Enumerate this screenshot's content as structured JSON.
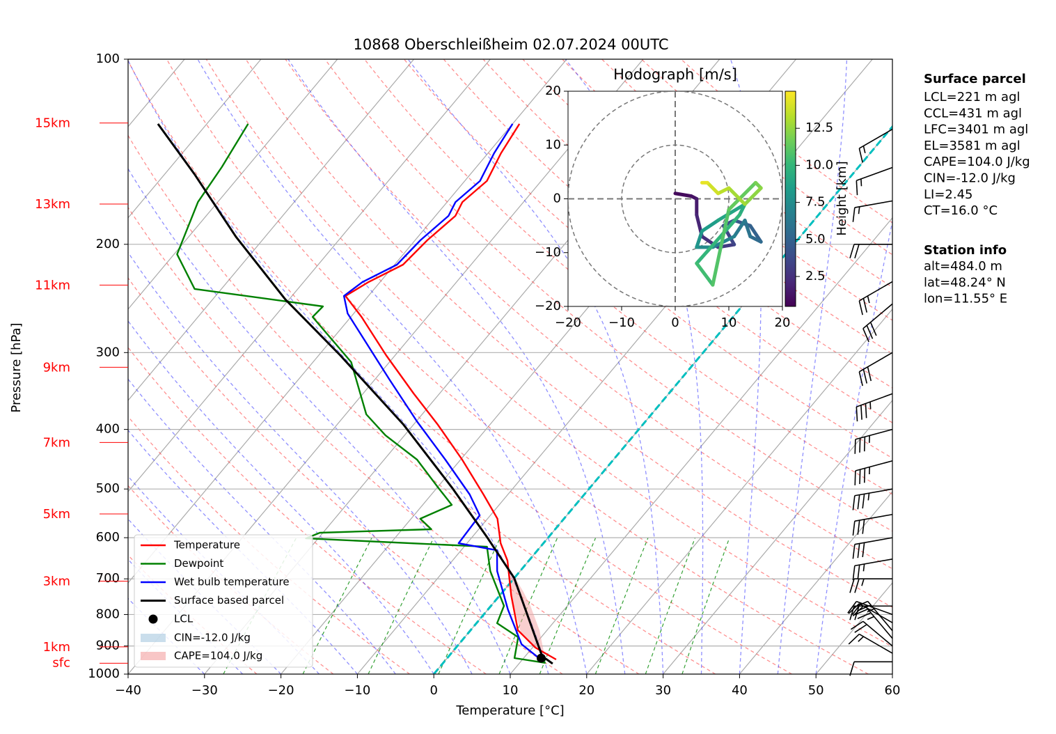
{
  "chart_data": {
    "type": "skewt",
    "title": "10868 Oberschleißheim 02.07.2024 00UTC",
    "xlabel": "Temperature [°C]",
    "ylabel": "Pressure [hPa]",
    "xlim": [
      -40,
      60
    ],
    "xticks": [
      {
        "value": -40,
        "label": "−40"
      },
      {
        "value": -30,
        "label": "−30"
      },
      {
        "value": -20,
        "label": "−20"
      },
      {
        "value": -10,
        "label": "−10"
      },
      0,
      10,
      20,
      30,
      40,
      50,
      60
    ],
    "ylim": [
      1000,
      100
    ],
    "log_y": true,
    "yticks": [
      100,
      200,
      300,
      400,
      500,
      600,
      700,
      800,
      900,
      1000
    ],
    "grid": true,
    "freezing_isotherm": 0,
    "height_labels": [
      {
        "label": "15km",
        "pressure": 127
      },
      {
        "label": "13km",
        "pressure": 172
      },
      {
        "label": "11km",
        "pressure": 233
      },
      {
        "label": "9km",
        "pressure": 317
      },
      {
        "label": "7km",
        "pressure": 420
      },
      {
        "label": "5km",
        "pressure": 549
      },
      {
        "label": "3km",
        "pressure": 706
      },
      {
        "label": "1km",
        "pressure": 903
      },
      {
        "label": "sfc",
        "pressure": 960
      }
    ],
    "series": [
      {
        "name": "Temperature",
        "color": "#ff0000",
        "pressure": [
          946.7,
          905.7,
          848.6,
          744.7,
          653.9,
          612.6,
          558.9,
          510.3,
          447.9,
          393.1,
          349.6,
          302.9,
          262.5,
          242.7,
          230.3,
          215.8,
          197.0,
          179.8,
          170.7,
          157.8,
          142.2,
          127.4
        ],
        "values": [
          14.4,
          10.4,
          6.2,
          1.5,
          -2.8,
          -5.6,
          -8.7,
          -13.2,
          -19.8,
          -26.8,
          -33.4,
          -41.2,
          -48.6,
          -53.0,
          -51.5,
          -48.9,
          -48.4,
          -47.4,
          -48.0,
          -47.1,
          -48.3,
          -49.1
        ]
      },
      {
        "name": "Dewpoint",
        "color": "#008000",
        "pressure": [
          959,
          941.7,
          871,
          826.5,
          774.5,
          680,
          620.7,
          601.6,
          589,
          581.4,
          558.9,
          530.6,
          497.1,
          447.9,
          408.9,
          378.1,
          310.9,
          262.5,
          252.4,
          236.4,
          207.6,
          170.7,
          149.8,
          127.4
        ],
        "values": [
          13.4,
          8.8,
          7.0,
          2.7,
          1.7,
          -3.9,
          -7.0,
          -31.6,
          -30.4,
          -16.2,
          -18.8,
          -16.2,
          -19.9,
          -25.7,
          -32.5,
          -37.3,
          -45.0,
          -55.0,
          -54.8,
          -73.5,
          -79.6,
          -82.6,
          -83.3,
          -84.6
        ]
      },
      {
        "name": "Wet bulb temperature",
        "color": "#0000ff",
        "pressure": [
          941.7,
          894.1,
          784.9,
          680,
          629,
          612.6,
          551.8,
          510.3,
          447.9,
          388.2,
          331.8,
          259.1,
          242.7,
          230.3,
          215.8,
          197.0,
          179.8,
          170.7,
          157.8,
          142.2,
          127.4
        ],
        "values": [
          12.0,
          8.2,
          2.6,
          -3.0,
          -5.3,
          -11.1,
          -11.4,
          -15.0,
          -22.0,
          -29.9,
          -38.1,
          -50.8,
          -53.2,
          -52.3,
          -49.7,
          -49.3,
          -48.3,
          -48.9,
          -48.0,
          -49.2,
          -50.0
        ]
      },
      {
        "name": "Surface based parcel",
        "color": "#000000",
        "pressure": [
          961.7,
          935,
          698,
          597,
          497,
          393,
          303,
          245.8,
          194.5,
          153.8,
          127.4
        ],
        "values": [
          14.4,
          12.2,
          0.0,
          -8.2,
          -18.1,
          -31.3,
          -47.2,
          -60.5,
          -73.8,
          -86.1,
          -96.4
        ]
      }
    ],
    "lcl": {
      "name": "LCL",
      "pressure": 942,
      "temperature": 12.3
    },
    "cin_label": "CIN=-12.0 J/kg",
    "cape_label": "CAPE=104.0 J/kg",
    "wind_barbs": {
      "pressure": [
        955,
        925,
        900,
        875,
        850,
        825,
        800,
        775,
        700,
        650,
        600,
        550,
        500,
        450,
        400,
        350,
        300,
        250,
        230,
        200,
        170,
        150,
        130
      ],
      "speed": [
        10,
        15,
        20,
        25,
        25,
        20,
        20,
        20,
        25,
        25,
        30,
        30,
        35,
        35,
        35,
        35,
        30,
        30,
        25,
        20,
        15,
        15,
        15
      ],
      "direction": [
        270,
        300,
        310,
        320,
        320,
        300,
        290,
        270,
        270,
        260,
        260,
        260,
        260,
        255,
        255,
        250,
        240,
        230,
        240,
        270,
        260,
        250,
        240
      ]
    },
    "hodograph": {
      "title": "Hodograph [m/s]",
      "colorbar_label": "Height [km]",
      "xlim": [
        -20,
        20
      ],
      "ylim": [
        -20,
        20
      ],
      "ticks": [
        {
          "value": -20,
          "label": "−20"
        },
        {
          "value": -10,
          "label": "−10"
        },
        0,
        10,
        20
      ],
      "rings": [
        10,
        20
      ],
      "clim": [
        0.48,
        15.0
      ],
      "cticks": [
        2.5,
        {
          "value": 5,
          "label": "5.0"
        },
        7.5,
        {
          "value": 10,
          "label": "10.0"
        },
        12.5
      ],
      "u": [
        0,
        3,
        4,
        4,
        5,
        8,
        11,
        9,
        11,
        14,
        16,
        14,
        13,
        11,
        7,
        4,
        5,
        8,
        13,
        12,
        4,
        7,
        10,
        15,
        16,
        13,
        10,
        8,
        6,
        5
      ],
      "v": [
        1,
        0.5,
        0,
        -3,
        -7,
        -9,
        -8.5,
        -5,
        -4,
        -5,
        -8,
        -7,
        -4,
        -7,
        -9,
        -9,
        -6,
        -4,
        -1,
        -3,
        -12,
        -16,
        -2,
        3,
        2,
        -1,
        2,
        1,
        3,
        3
      ],
      "height": [
        0.6,
        0.9,
        1.2,
        1.6,
        2.0,
        2.5,
        3.0,
        3.5,
        4.0,
        4.5,
        5.0,
        5.5,
        6.0,
        6.5,
        7.0,
        7.5,
        8.0,
        8.5,
        9.0,
        9.5,
        10.0,
        10.5,
        11.0,
        11.5,
        12.0,
        12.5,
        13.0,
        13.5,
        14.0,
        14.5
      ]
    },
    "info": {
      "surface_title": "Surface parcel",
      "surface_lines": [
        "LCL=221 m agl",
        "CCL=431 m agl",
        "LFC=3401 m agl",
        "EL=3581 m agl",
        "CAPE=104.0 J/kg",
        "CIN=-12.0 J/kg",
        "LI=2.45",
        "CT=16.0 °C"
      ],
      "station_title": "Station info",
      "station_lines": [
        "alt=484.0 m",
        "lat=48.24° N",
        "lon=11.55° E"
      ]
    }
  }
}
